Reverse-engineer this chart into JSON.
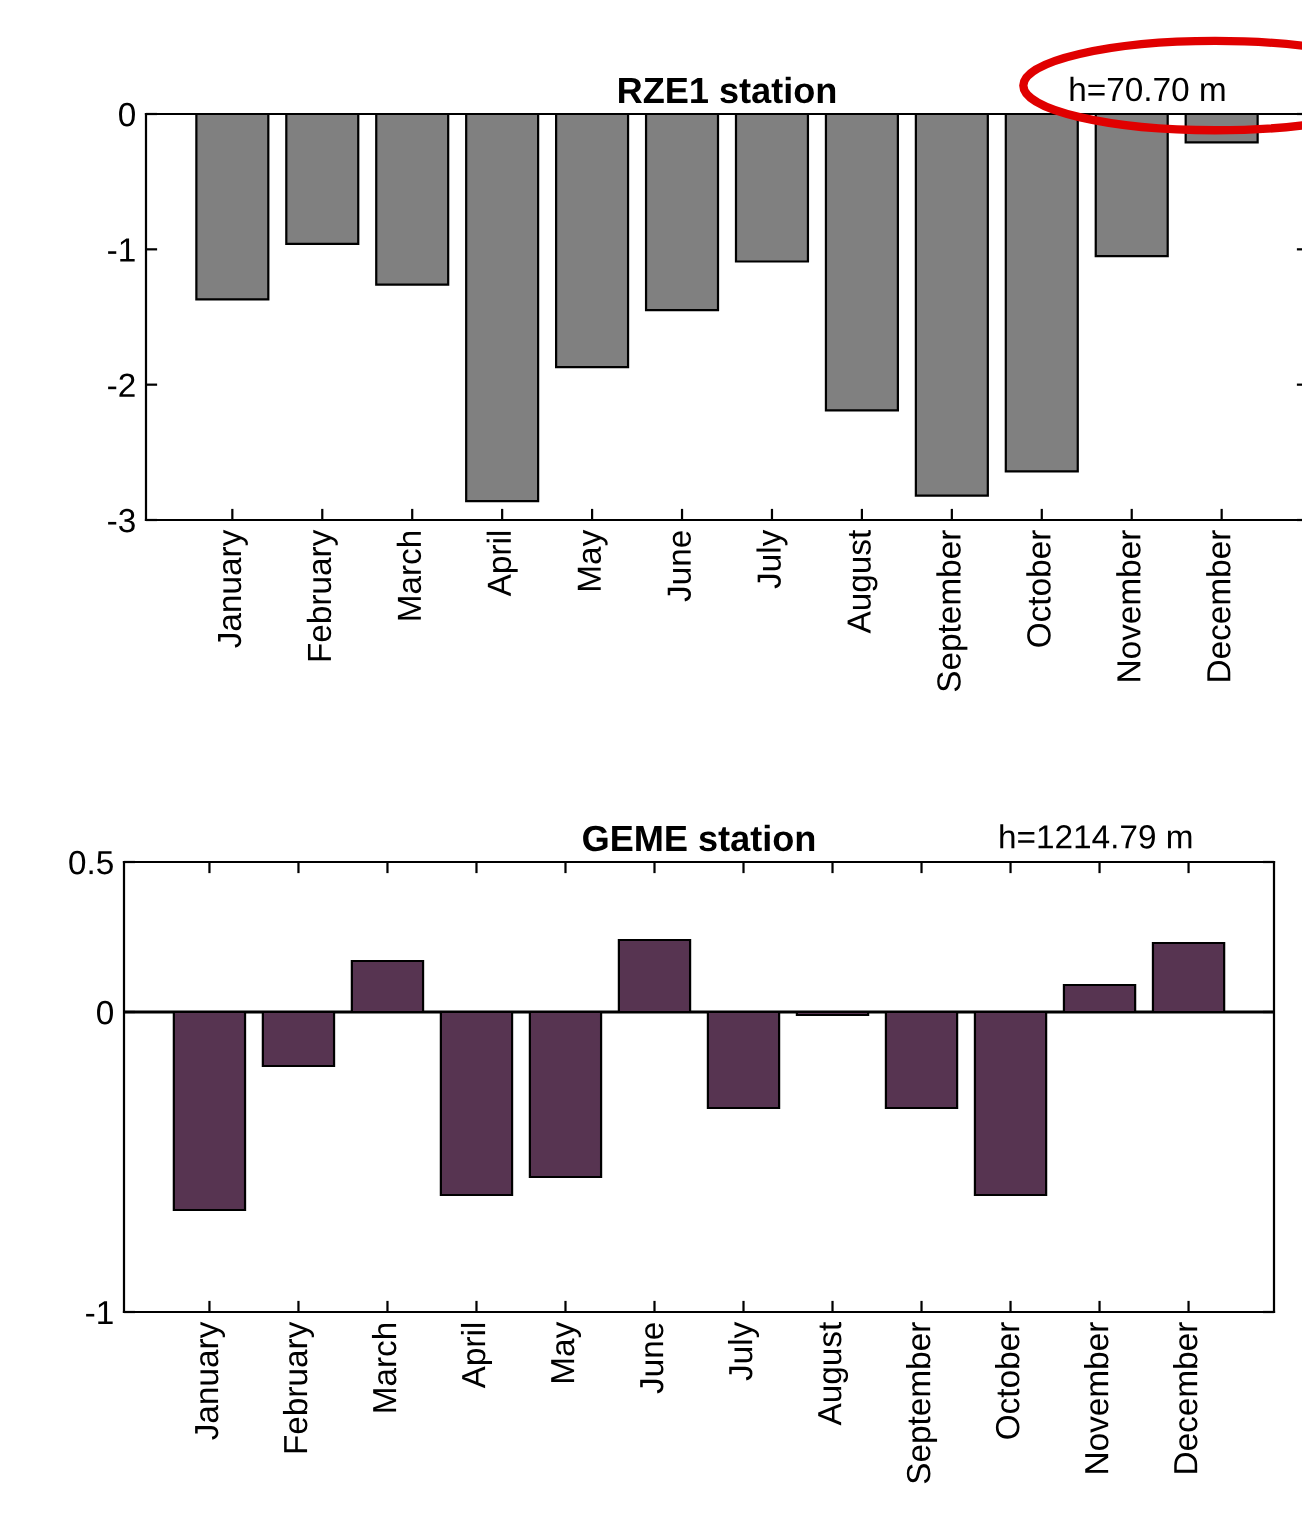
{
  "chart_data": [
    {
      "type": "bar",
      "title": "RZE1 station",
      "annotations": [
        "h=70.70 m"
      ],
      "categories": [
        "January",
        "February",
        "March",
        "April",
        "May",
        "June",
        "July",
        "August",
        "September",
        "October",
        "November",
        "December"
      ],
      "series": [
        {
          "color": "#808080",
          "values": [
            -1.37,
            -0.96,
            -1.26,
            -2.86,
            -1.87,
            -1.45,
            -1.09,
            -2.19,
            -2.82,
            -2.64,
            -1.05,
            -0.21
          ]
        }
      ],
      "ylim": [
        -3,
        0
      ],
      "yticks": [
        -3,
        -2,
        -1,
        0
      ],
      "grid": false,
      "legend": false
    },
    {
      "type": "bar",
      "title": "GEME station",
      "annotations": [
        "h=1214.79 m"
      ],
      "categories": [
        "January",
        "February",
        "March",
        "April",
        "May",
        "June",
        "July",
        "August",
        "September",
        "October",
        "November",
        "December"
      ],
      "series": [
        {
          "color": "#573451",
          "values": [
            -0.66,
            -0.18,
            0.17,
            -0.61,
            -0.55,
            0.24,
            -0.32,
            -0.01,
            -0.32,
            -0.61,
            0.09,
            0.23
          ]
        }
      ],
      "ylim": [
        -1,
        0.5
      ],
      "yticks": [
        -1,
        0,
        0.5
      ],
      "ref_lines": [
        {
          "axis": "y",
          "value": 0,
          "color": "#000000"
        }
      ],
      "grid": false,
      "legend": false
    }
  ]
}
